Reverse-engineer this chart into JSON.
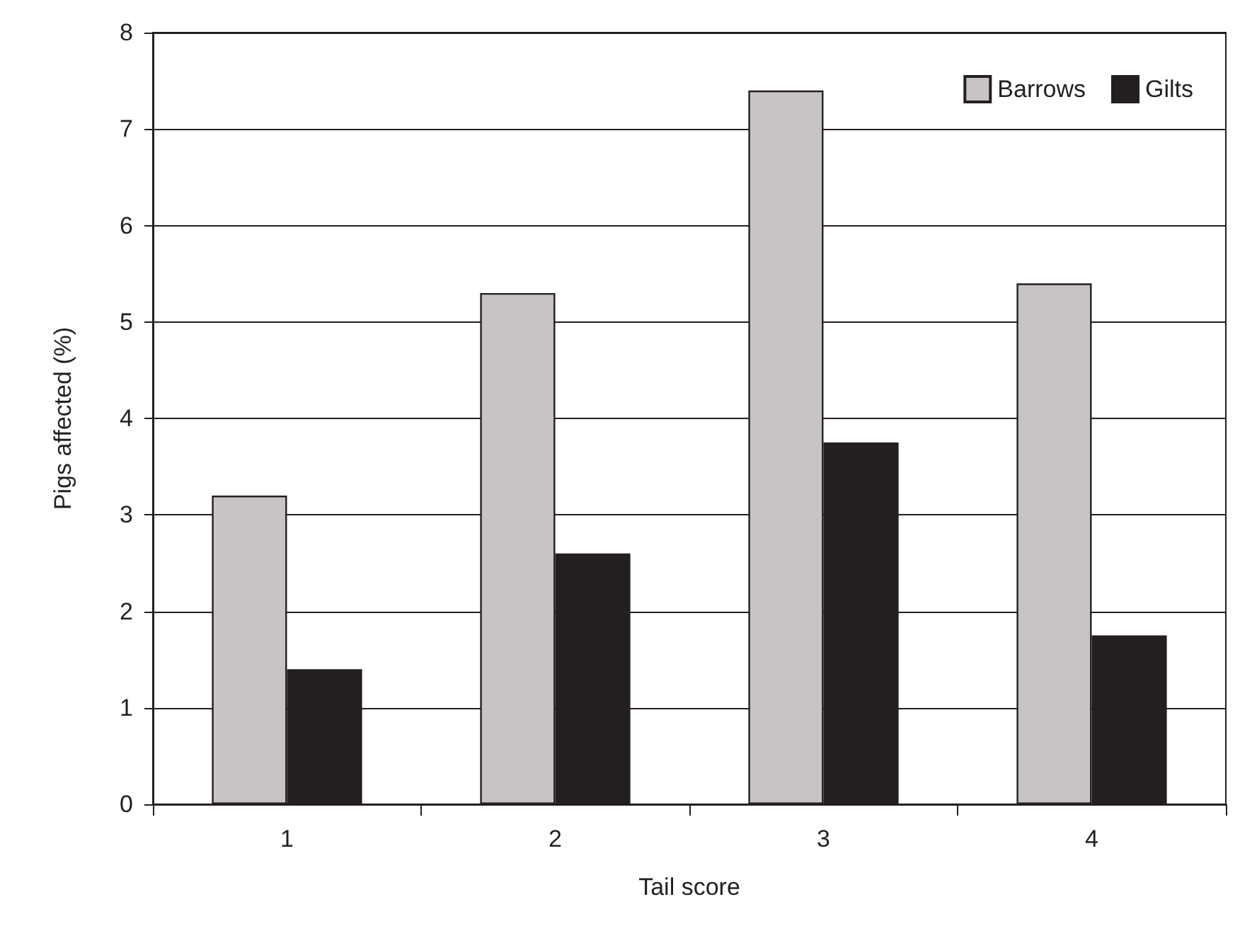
{
  "chart_data": {
    "type": "bar",
    "xlabel": "Tail score",
    "ylabel": "Pigs affected (%)",
    "categories": [
      "1",
      "2",
      "3",
      "4"
    ],
    "series": [
      {
        "name": "Barrows",
        "color": "#c8c3c5",
        "values": [
          3.2,
          5.3,
          7.4,
          5.4
        ]
      },
      {
        "name": "Gilts",
        "color": "#231f20",
        "values": [
          1.4,
          2.6,
          3.75,
          1.75
        ]
      }
    ],
    "ylim": [
      0,
      8
    ],
    "yticks": [
      0,
      1,
      2,
      3,
      4,
      5,
      6,
      7,
      8
    ],
    "grid": "y",
    "legend": "top right"
  }
}
